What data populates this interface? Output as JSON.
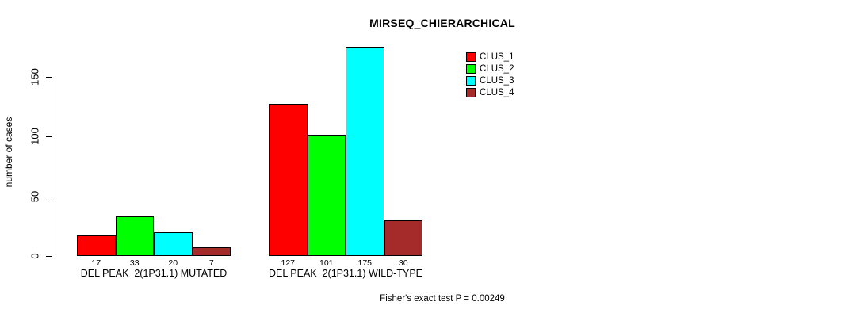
{
  "chart_data": {
    "type": "bar",
    "title": "MIRSEQ_CHIERARCHICAL",
    "ylabel": "number of cases",
    "xlabel": "",
    "ylim": [
      0,
      175
    ],
    "yticks": [
      0,
      50,
      100,
      150
    ],
    "grid": false,
    "legend_position": "right",
    "annotation": "Fisher's exact test P = 0.00249",
    "categories": [
      "DEL PEAK  2(1P31.1) MUTATED",
      "DEL PEAK  2(1P31.1) WILD-TYPE"
    ],
    "series": [
      {
        "name": "CLUS_1",
        "color": "#FF0000",
        "values": [
          17,
          127
        ]
      },
      {
        "name": "CLUS_2",
        "color": "#00FF00",
        "values": [
          33,
          101
        ]
      },
      {
        "name": "CLUS_3",
        "color": "#00FFFF",
        "values": [
          20,
          175
        ]
      },
      {
        "name": "CLUS_4",
        "color": "#A52A2A",
        "values": [
          7,
          30
        ]
      }
    ]
  }
}
